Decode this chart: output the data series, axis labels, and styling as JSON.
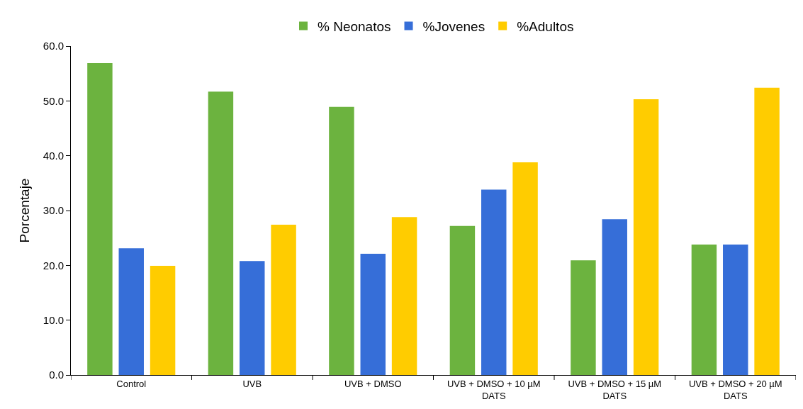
{
  "chart_data": {
    "type": "bar",
    "ylabel": "Porcentaje",
    "categories": [
      "Control",
      "UVB",
      "UVB + DMSO",
      "UVB + DMSO + 10 µM\nDATS",
      "UVB + DMSO + 15 µM\nDATS",
      "UVB + DMSO + 20 µM\nDATS"
    ],
    "series": [
      {
        "name": "% Neonatos",
        "color": "#6cb33f",
        "values": [
          56.9,
          51.7,
          48.9,
          27.2,
          20.9,
          23.8
        ]
      },
      {
        "name": "%Jovenes",
        "color": "#366ed8",
        "values": [
          23.1,
          20.8,
          22.1,
          33.8,
          28.4,
          23.8
        ]
      },
      {
        "name": "%Adultos",
        "color": "#ffcc00",
        "values": [
          19.9,
          27.4,
          28.8,
          38.8,
          50.3,
          52.4
        ]
      }
    ],
    "ylim": [
      0,
      60
    ],
    "yticks": [
      {
        "value": 0,
        "label": "0.0"
      },
      {
        "value": 10,
        "label": "10.0"
      },
      {
        "value": 20,
        "label": "20.0"
      },
      {
        "value": 30,
        "label": "30.0"
      },
      {
        "value": 40,
        "label": "40.0"
      },
      {
        "value": 50,
        "label": "50.0"
      },
      {
        "value": 60,
        "label": "60.0"
      }
    ],
    "grid": false,
    "legend": "top"
  }
}
